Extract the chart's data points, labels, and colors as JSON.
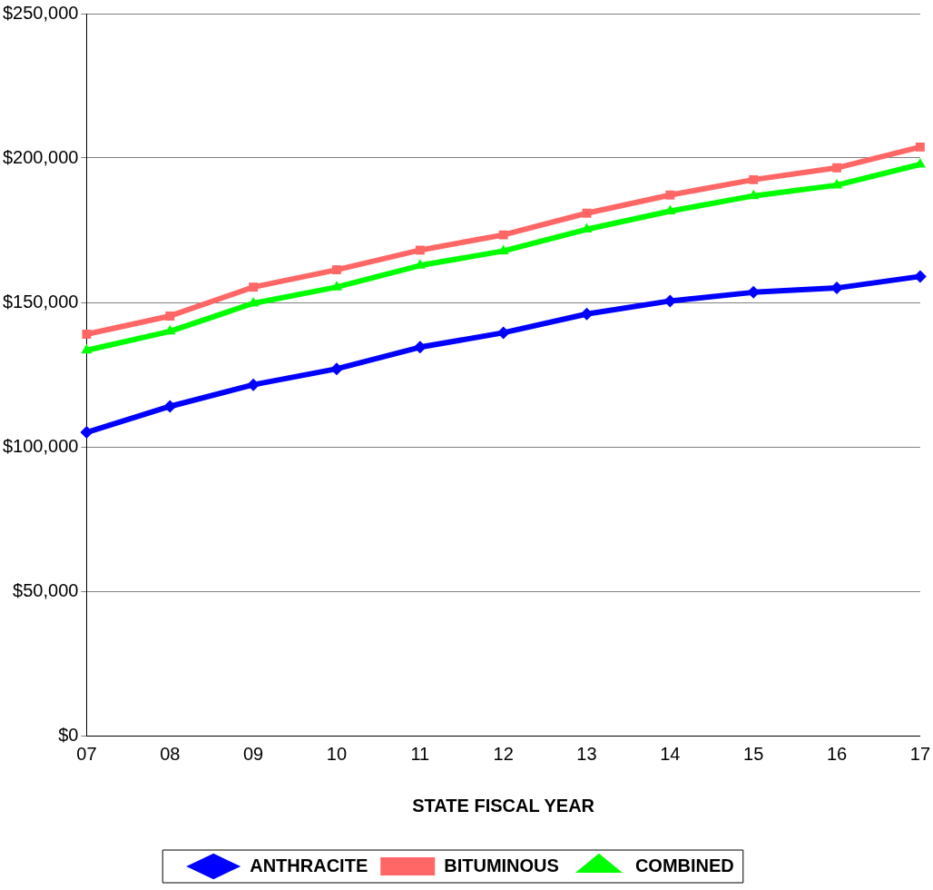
{
  "chart_data": {
    "type": "line",
    "xlabel": "STATE FISCAL YEAR",
    "categories": [
      "07",
      "08",
      "09",
      "10",
      "11",
      "12",
      "13",
      "14",
      "15",
      "16",
      "17"
    ],
    "series": [
      {
        "name": "ANTHRACITE",
        "color": "#0000ff",
        "marker": "diamond",
        "values": [
          105000,
          114000,
          121500,
          127000,
          134500,
          139500,
          146000,
          150500,
          153500,
          155000,
          159000
        ]
      },
      {
        "name": "BITUMINOUS",
        "color": "#ff6666",
        "marker": "square",
        "values": [
          139000,
          145300,
          155300,
          161300,
          168100,
          173400,
          180900,
          187200,
          192500,
          196600,
          203800
        ]
      },
      {
        "name": "COMBINED",
        "color": "#00ff00",
        "marker": "triangle",
        "values": [
          133400,
          140000,
          149700,
          155300,
          162800,
          167800,
          175300,
          181600,
          186900,
          190600,
          197800
        ]
      }
    ],
    "ylim": [
      0,
      250000
    ],
    "yticks": [
      {
        "value": 0,
        "label": "$0"
      },
      {
        "value": 50000,
        "label": "$50,000"
      },
      {
        "value": 100000,
        "label": "$100,000"
      },
      {
        "value": 150000,
        "label": "$150,000"
      },
      {
        "value": 200000,
        "label": "$200,000"
      },
      {
        "value": 250000,
        "label": "$250,000"
      }
    ],
    "grid": "y",
    "legend": "bottom",
    "line_style": "solid"
  }
}
